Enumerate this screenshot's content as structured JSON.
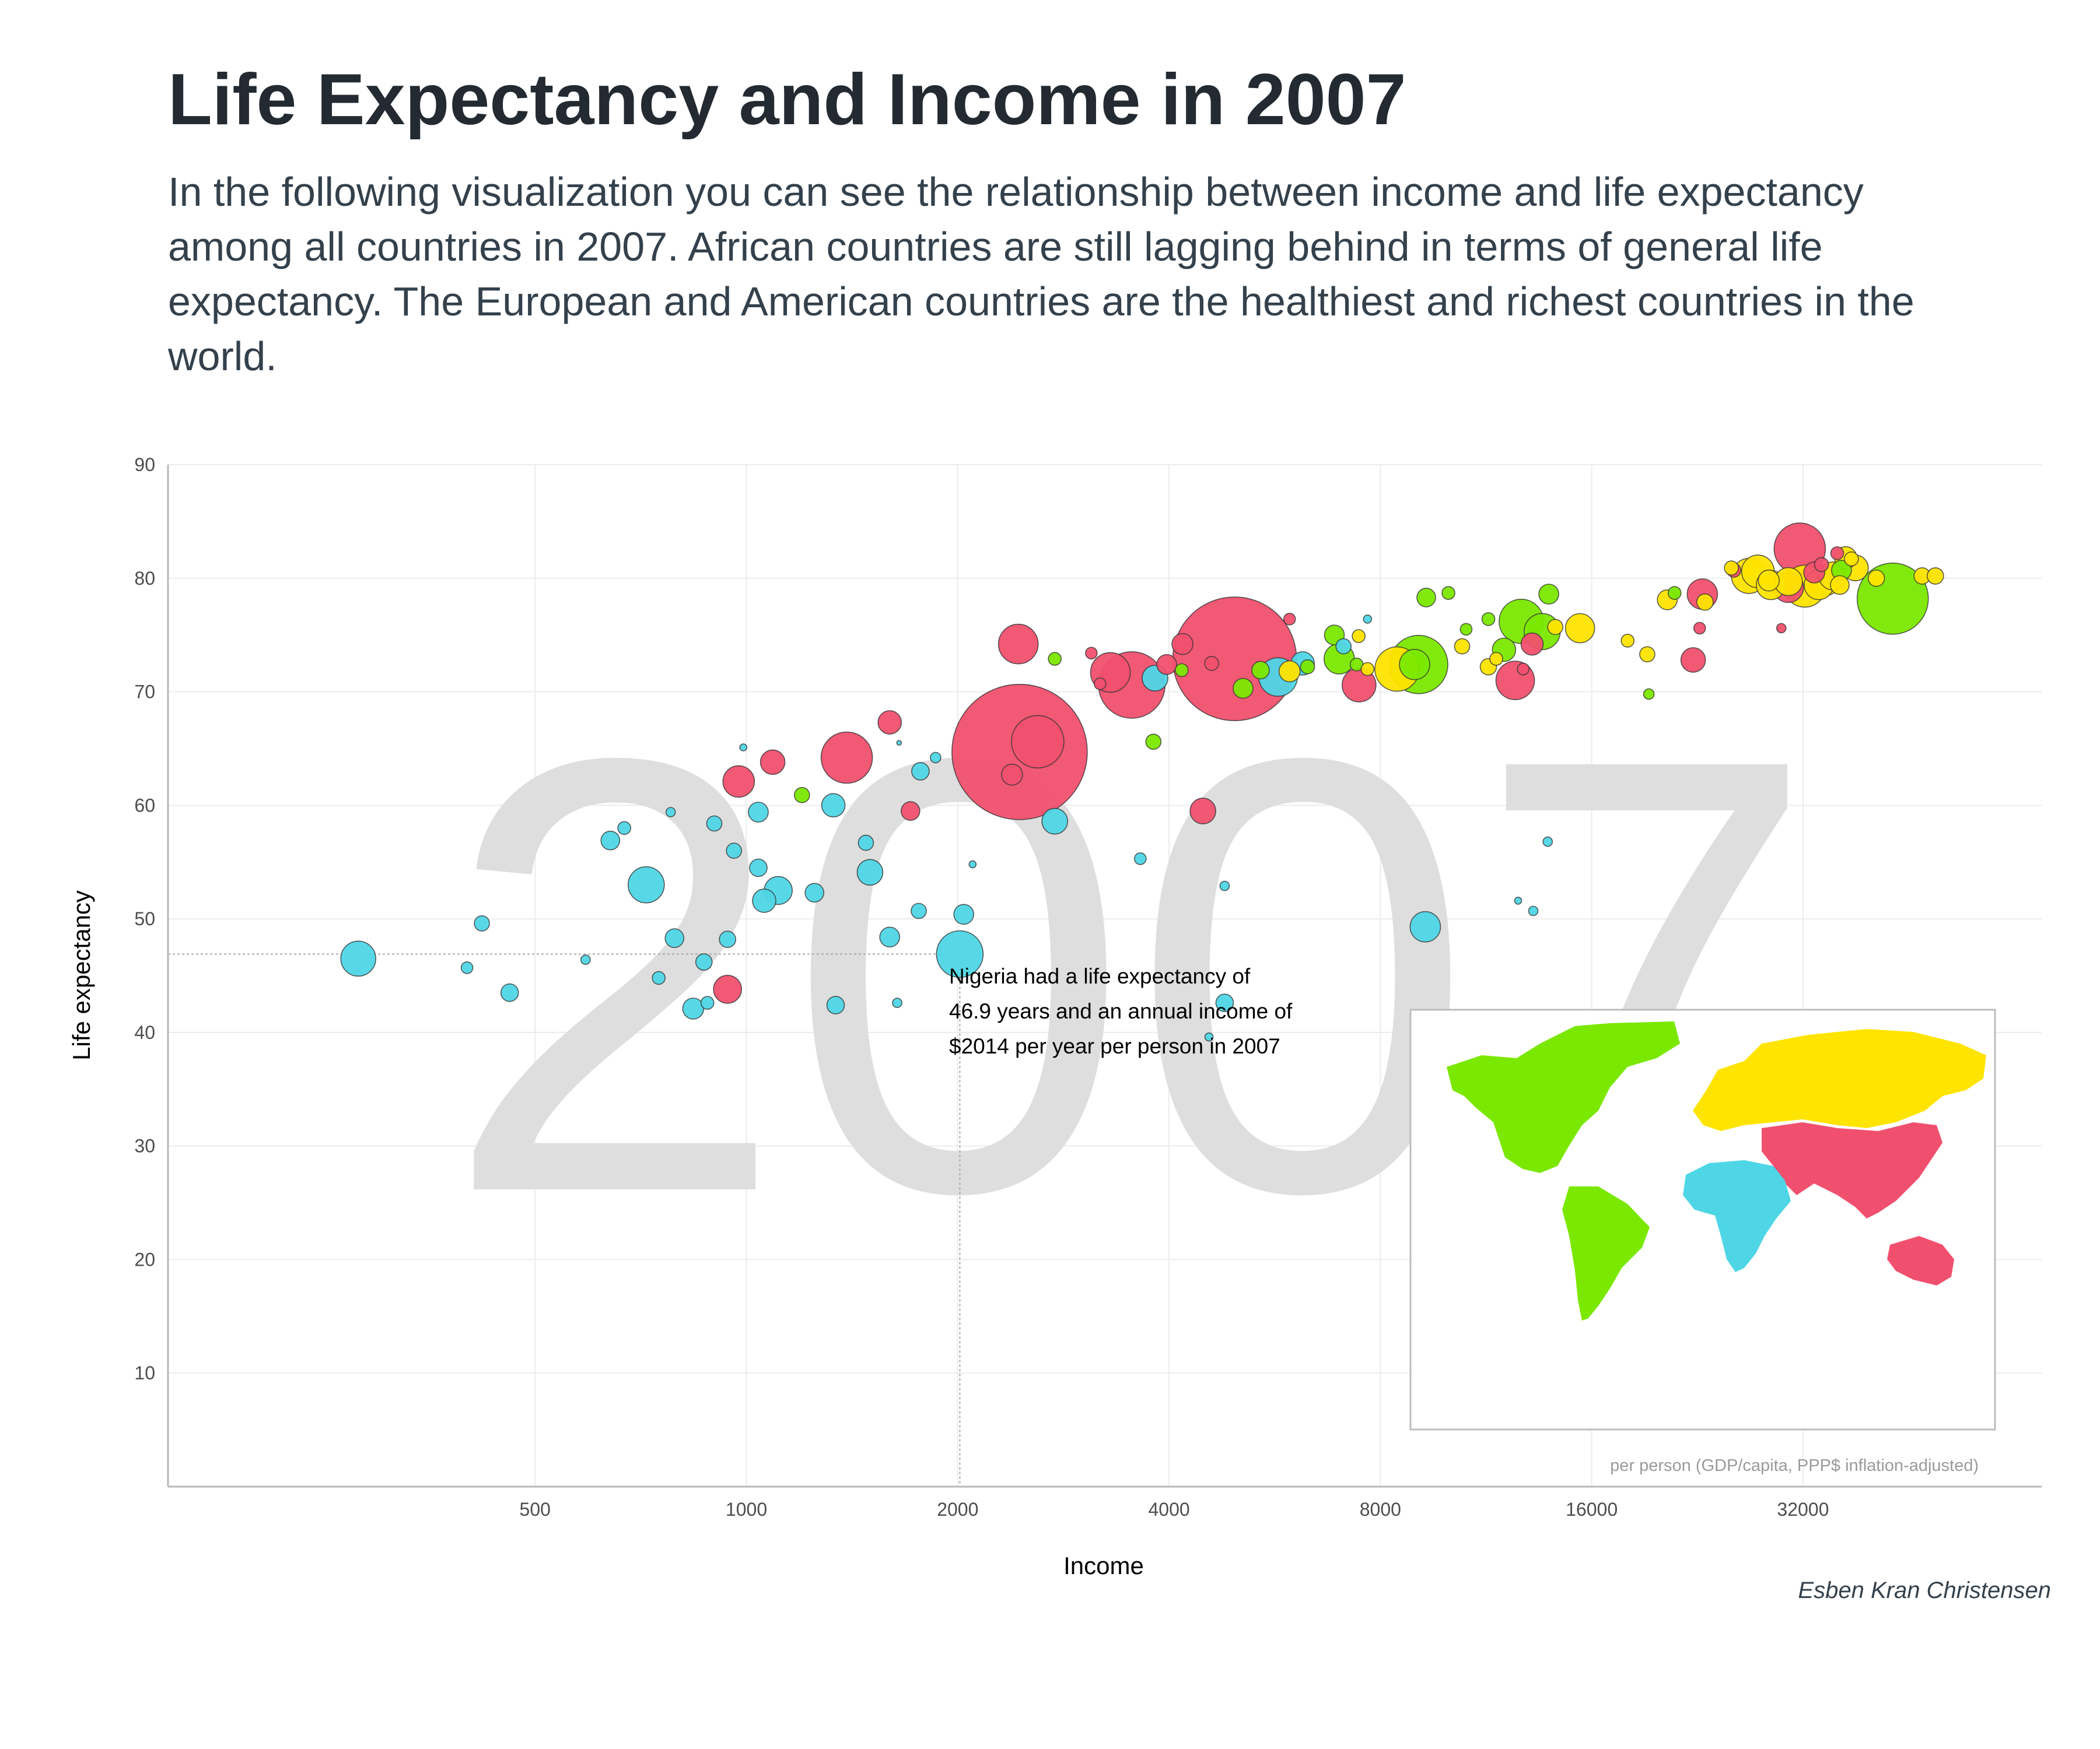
{
  "title": "Life Expectancy and Income in 2007",
  "subtitle": "In the following visualization you can see the relationship between income and life expectancy among all countries in 2007. African countries are still lagging behind in terms of general life expectancy. The European and American countries are the healthiest and richest countries in the world.",
  "caption": "Esben Kran Christensen",
  "colors": {
    "Africa": "#4fd6e6",
    "Asia": "#f0506e",
    "Americas": "#7ae800",
    "Europe": "#ffe400",
    "grid": "#ececec",
    "watermark": "#dedede"
  },
  "chart_data": {
    "type": "scatter",
    "title": "",
    "xlabel": "Income",
    "ylabel": "Life expectancy",
    "x_scale": "log2",
    "xlim": [
      150,
      70000
    ],
    "ylim": [
      0,
      90
    ],
    "x_ticks": [
      500,
      1000,
      2000,
      4000,
      8000,
      16000,
      32000
    ],
    "x_tick_labels": [
      "500",
      "1000",
      "2000",
      "4000",
      "8000",
      "16000",
      "32000"
    ],
    "y_ticks": [
      10,
      20,
      30,
      40,
      50,
      60,
      70,
      80,
      90
    ],
    "y_tick_labels": [
      "10",
      "20",
      "30",
      "40",
      "50",
      "60",
      "70",
      "80",
      "90"
    ],
    "grid": true,
    "year_watermark": "2007",
    "x_unit_note": "per person (GDP/capita, PPP$ inflation-adjusted)",
    "annotation": {
      "lines": [
        "Nigeria had a life expectancy of",
        "46.9 years and an annual income of",
        "$2014 per year per person in 2007"
      ],
      "x": 2014,
      "y": 46.9
    },
    "legend": "world map inset, bottom-right",
    "series": [
      {
        "name": "Africa",
        "points": [
          [
            280,
            46.5,
            30
          ],
          [
            420,
            49.6,
            13
          ],
          [
            400,
            45.7,
            10
          ],
          [
            460,
            43.5,
            15
          ],
          [
            590,
            46.4,
            8
          ],
          [
            640,
            56.9,
            16
          ],
          [
            670,
            58.0,
            11
          ],
          [
            720,
            53.0,
            31
          ],
          [
            750,
            44.8,
            11
          ],
          [
            780,
            59.4,
            8
          ],
          [
            790,
            48.3,
            16
          ],
          [
            870,
            46.2,
            14
          ],
          [
            880,
            42.6,
            11
          ],
          [
            840,
            42.1,
            18
          ],
          [
            900,
            58.4,
            13
          ],
          [
            940,
            48.2,
            14
          ],
          [
            960,
            56.0,
            13
          ],
          [
            990,
            65.1,
            6
          ],
          [
            1040,
            59.4,
            17
          ],
          [
            1040,
            54.5,
            15
          ],
          [
            1060,
            51.6,
            20
          ],
          [
            1110,
            52.5,
            24
          ],
          [
            1250,
            52.3,
            16
          ],
          [
            1330,
            60.0,
            20
          ],
          [
            1340,
            42.4,
            15
          ],
          [
            1480,
            56.7,
            13
          ],
          [
            1500,
            54.1,
            22
          ],
          [
            1600,
            48.4,
            17
          ],
          [
            1640,
            42.6,
            8
          ],
          [
            1650,
            65.5,
            4
          ],
          [
            1770,
            63.0,
            15
          ],
          [
            1760,
            50.7,
            13
          ],
          [
            1860,
            64.2,
            9
          ],
          [
            2040,
            50.4,
            17
          ],
          [
            2014,
            46.9,
            40
          ],
          [
            2100,
            54.8,
            6
          ],
          [
            2750,
            58.6,
            22
          ],
          [
            3640,
            55.3,
            10
          ],
          [
            3820,
            71.2,
            22
          ],
          [
            4800,
            42.6,
            15
          ],
          [
            4560,
            39.6,
            7
          ],
          [
            4800,
            52.9,
            8
          ],
          [
            5720,
            71.3,
            33
          ],
          [
            6200,
            72.5,
            20
          ],
          [
            7090,
            74.0,
            13
          ],
          [
            7670,
            76.4,
            7
          ],
          [
            9270,
            49.3,
            26
          ],
          [
            12570,
            51.6,
            6
          ],
          [
            13210,
            50.7,
            8
          ],
          [
            13850,
            56.8,
            8
          ]
        ]
      },
      {
        "name": "Asia",
        "points": [
          [
            975,
            62.1,
            27
          ],
          [
            1090,
            63.8,
            21
          ],
          [
            940,
            43.8,
            24
          ],
          [
            1390,
            64.2,
            44
          ],
          [
            1713,
            59.5,
            16
          ],
          [
            1600,
            67.3,
            20
          ],
          [
            2450,
            64.7,
            116
          ],
          [
            2390,
            62.7,
            18
          ],
          [
            2600,
            65.6,
            45
          ],
          [
            2440,
            74.2,
            34
          ],
          [
            3100,
            73.4,
            10
          ],
          [
            3190,
            70.7,
            10
          ],
          [
            3540,
            70.6,
            57
          ],
          [
            3300,
            71.7,
            34
          ],
          [
            3970,
            72.4,
            17
          ],
          [
            4180,
            74.2,
            18
          ],
          [
            4470,
            59.5,
            22
          ],
          [
            4960,
            72.9,
            106
          ],
          [
            4600,
            72.5,
            12
          ],
          [
            5940,
            76.4,
            10
          ],
          [
            7460,
            70.6,
            29
          ],
          [
            12450,
            71.0,
            33
          ],
          [
            12780,
            72.0,
            10
          ],
          [
            13160,
            74.2,
            19
          ],
          [
            22320,
            72.8,
            21
          ],
          [
            22800,
            75.6,
            10
          ],
          [
            23000,
            78.6,
            26
          ],
          [
            25500,
            80.7,
            12
          ],
          [
            29800,
            75.6,
            8
          ],
          [
            31660,
            82.6,
            44
          ],
          [
            30500,
            79.2,
            26
          ],
          [
            33200,
            80.5,
            18
          ],
          [
            35800,
            82.2,
            11
          ],
          [
            34000,
            81.2,
            12
          ]
        ]
      },
      {
        "name": "Americas",
        "points": [
          [
            1200,
            60.9,
            13
          ],
          [
            2750,
            72.9,
            11
          ],
          [
            3800,
            65.6,
            13
          ],
          [
            4170,
            71.9,
            11
          ],
          [
            5100,
            70.3,
            17
          ],
          [
            5400,
            71.9,
            15
          ],
          [
            6300,
            72.2,
            12
          ],
          [
            6880,
            75.0,
            17
          ],
          [
            6990,
            72.9,
            26
          ],
          [
            7400,
            72.4,
            11
          ],
          [
            8950,
            72.4,
            26
          ],
          [
            9070,
            72.4,
            50
          ],
          [
            9300,
            78.3,
            16
          ],
          [
            10000,
            78.7,
            11
          ],
          [
            10600,
            75.5,
            10
          ],
          [
            11400,
            76.4,
            11
          ],
          [
            12000,
            73.7,
            20
          ],
          [
            12700,
            76.2,
            38
          ],
          [
            13600,
            75.3,
            31
          ],
          [
            13900,
            78.6,
            17
          ],
          [
            19300,
            69.8,
            9
          ],
          [
            21000,
            78.7,
            11
          ],
          [
            36300,
            80.7,
            17
          ],
          [
            42950,
            78.2,
            61
          ]
        ]
      },
      {
        "name": "Europe",
        "points": [
          [
            5940,
            71.8,
            18
          ],
          [
            7450,
            74.9,
            11
          ],
          [
            7670,
            72.0,
            11
          ],
          [
            8450,
            72.0,
            38
          ],
          [
            10460,
            74.0,
            13
          ],
          [
            11400,
            72.2,
            14
          ],
          [
            11700,
            72.9,
            11
          ],
          [
            14200,
            75.7,
            13
          ],
          [
            15400,
            75.6,
            25
          ],
          [
            18000,
            74.5,
            11
          ],
          [
            19200,
            73.3,
            13
          ],
          [
            20500,
            78.1,
            17
          ],
          [
            23200,
            77.9,
            14
          ],
          [
            25300,
            80.9,
            12
          ],
          [
            28600,
            79.8,
            18
          ],
          [
            26800,
            80.2,
            30
          ],
          [
            27600,
            80.6,
            28
          ],
          [
            28800,
            79.4,
            25
          ],
          [
            30500,
            79.7,
            24
          ],
          [
            32200,
            79.3,
            36
          ],
          [
            33700,
            79.4,
            25
          ],
          [
            34400,
            79.8,
            26
          ],
          [
            35300,
            80.2,
            24
          ],
          [
            36100,
            79.4,
            16
          ],
          [
            36800,
            81.8,
            19
          ],
          [
            37500,
            81.7,
            12
          ],
          [
            38000,
            80.9,
            22
          ],
          [
            40700,
            80.0,
            14
          ],
          [
            47300,
            80.2,
            14
          ],
          [
            49400,
            80.2,
            14
          ]
        ]
      }
    ]
  }
}
